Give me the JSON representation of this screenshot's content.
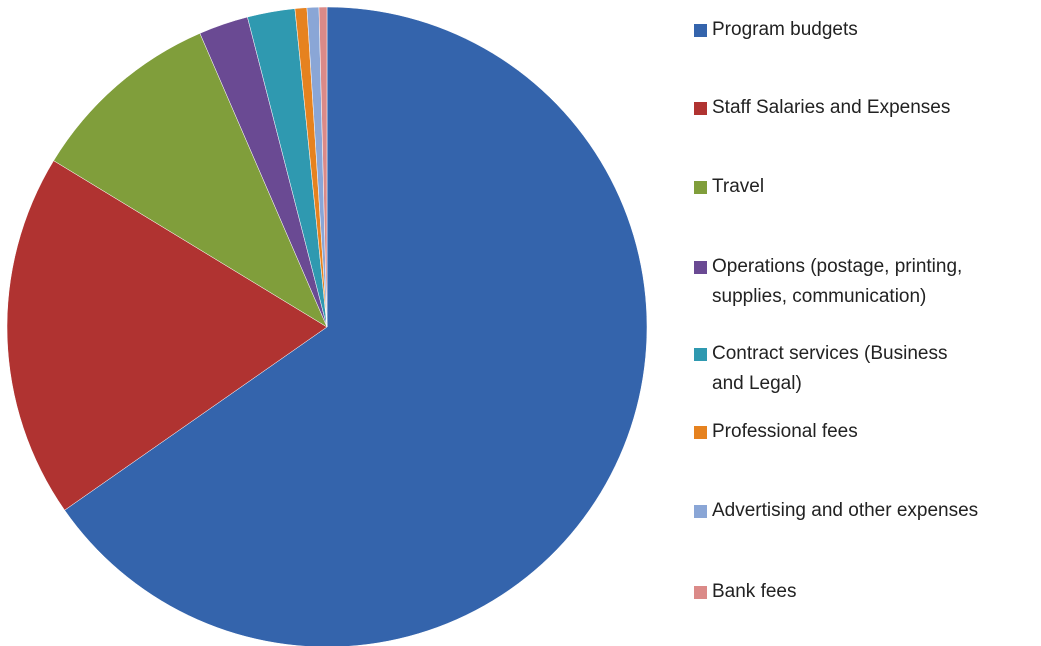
{
  "chart_data": {
    "type": "pie",
    "categories": [
      "Program budgets",
      "Staff Salaries and Expenses",
      "Travel",
      "Operations (postage, printing, supplies, communication)",
      "Contract services (Business and Legal)",
      "Professional fees",
      "Advertising and other expenses",
      "Bank fees"
    ],
    "values": [
      65.3,
      18.4,
      9.8,
      2.5,
      2.4,
      0.6,
      0.6,
      0.4
    ],
    "colors": [
      "#3464ac",
      "#b03331",
      "#809e3b",
      "#6a4a93",
      "#2f99b0",
      "#e6821f",
      "#8aa6d6",
      "#db8a88"
    ],
    "legend": "right"
  }
}
